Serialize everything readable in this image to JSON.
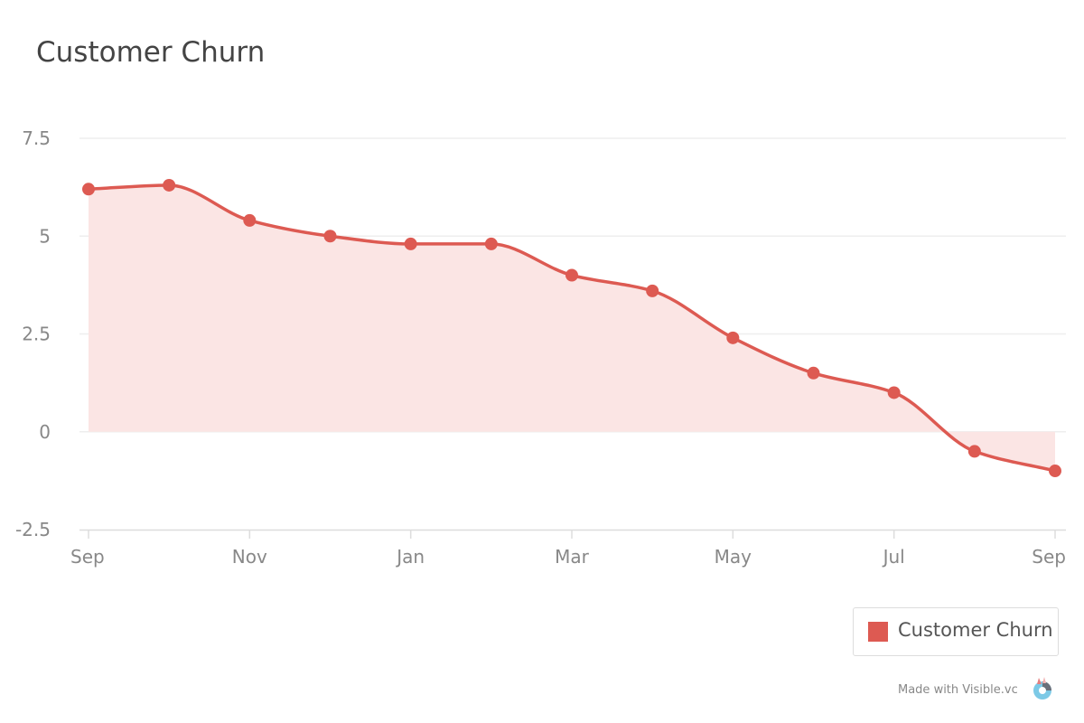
{
  "chart_data": {
    "type": "area",
    "title": "Customer Churn",
    "xlabel": "",
    "ylabel": "",
    "x": [
      "2019-09",
      "2019-10",
      "2019-11",
      "2019-12",
      "2020-01",
      "2020-02",
      "2020-03",
      "2020-04",
      "2020-05",
      "2020-06",
      "2020-07",
      "2020-08",
      "2020-09"
    ],
    "x_tick_labels": [
      "Sep",
      "Nov",
      "Jan",
      "Mar",
      "May",
      "Jul",
      "Sep"
    ],
    "y_tick_labels": [
      "7.5",
      "5",
      "2.5",
      "0",
      "-2.5"
    ],
    "ylim": [
      -2.5,
      7.5
    ],
    "grid": true,
    "legend_position": "bottom-right",
    "series": [
      {
        "name": "Customer Churn",
        "values": [
          6.2,
          6.3,
          5.4,
          5.0,
          4.8,
          4.8,
          4.0,
          3.6,
          2.4,
          1.5,
          1.0,
          -0.5,
          -1.0
        ]
      }
    ]
  },
  "colors": {
    "series": "#dd5a52",
    "fill": "#fbe5e4",
    "grid": "#eeeeee",
    "axis": "#dddddd"
  },
  "watermark": {
    "text": "Made with Visible.vc",
    "icon": "visible-logo-icon"
  }
}
